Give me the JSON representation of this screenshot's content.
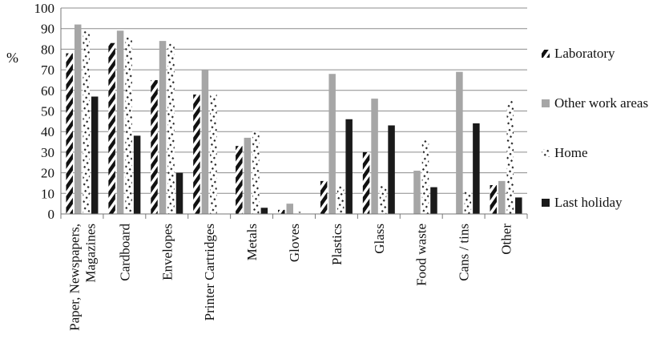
{
  "chart_data": {
    "type": "bar",
    "title": "",
    "xlabel": "",
    "ylabel": "%",
    "ylim": [
      0,
      100
    ],
    "ytick_step": 10,
    "grid": true,
    "legend_position": "right",
    "categories": [
      [
        "Paper, Newspapers,",
        "Magazines"
      ],
      [
        "Cardboard"
      ],
      [
        "Envelopes"
      ],
      [
        "Printer Cartridges"
      ],
      [
        "Metals"
      ],
      [
        "Gloves"
      ],
      [
        "Plastics"
      ],
      [
        "Glass"
      ],
      [
        "Food waste"
      ],
      [
        "Cans / tins"
      ],
      [
        "Other"
      ]
    ],
    "series": [
      {
        "name": "Laboratory",
        "pattern": "diagonal-stripes",
        "color": "#111111",
        "values": [
          78,
          83,
          65,
          58,
          33,
          2,
          16,
          30,
          0,
          0,
          14
        ]
      },
      {
        "name": "Other work areas",
        "pattern": "solid",
        "color": "#a6a6a6",
        "values": [
          92,
          89,
          84,
          70,
          37,
          5,
          68,
          56,
          21,
          69,
          16
        ]
      },
      {
        "name": "Home",
        "pattern": "dotted",
        "color": "#333333",
        "values": [
          89,
          86,
          83,
          58,
          40,
          1,
          14,
          14,
          36,
          11,
          55
        ]
      },
      {
        "name": "Last holiday",
        "pattern": "solid",
        "color": "#1a1a1a",
        "values": [
          57,
          38,
          20,
          0,
          3,
          0,
          46,
          43,
          13,
          44,
          8
        ]
      }
    ]
  }
}
